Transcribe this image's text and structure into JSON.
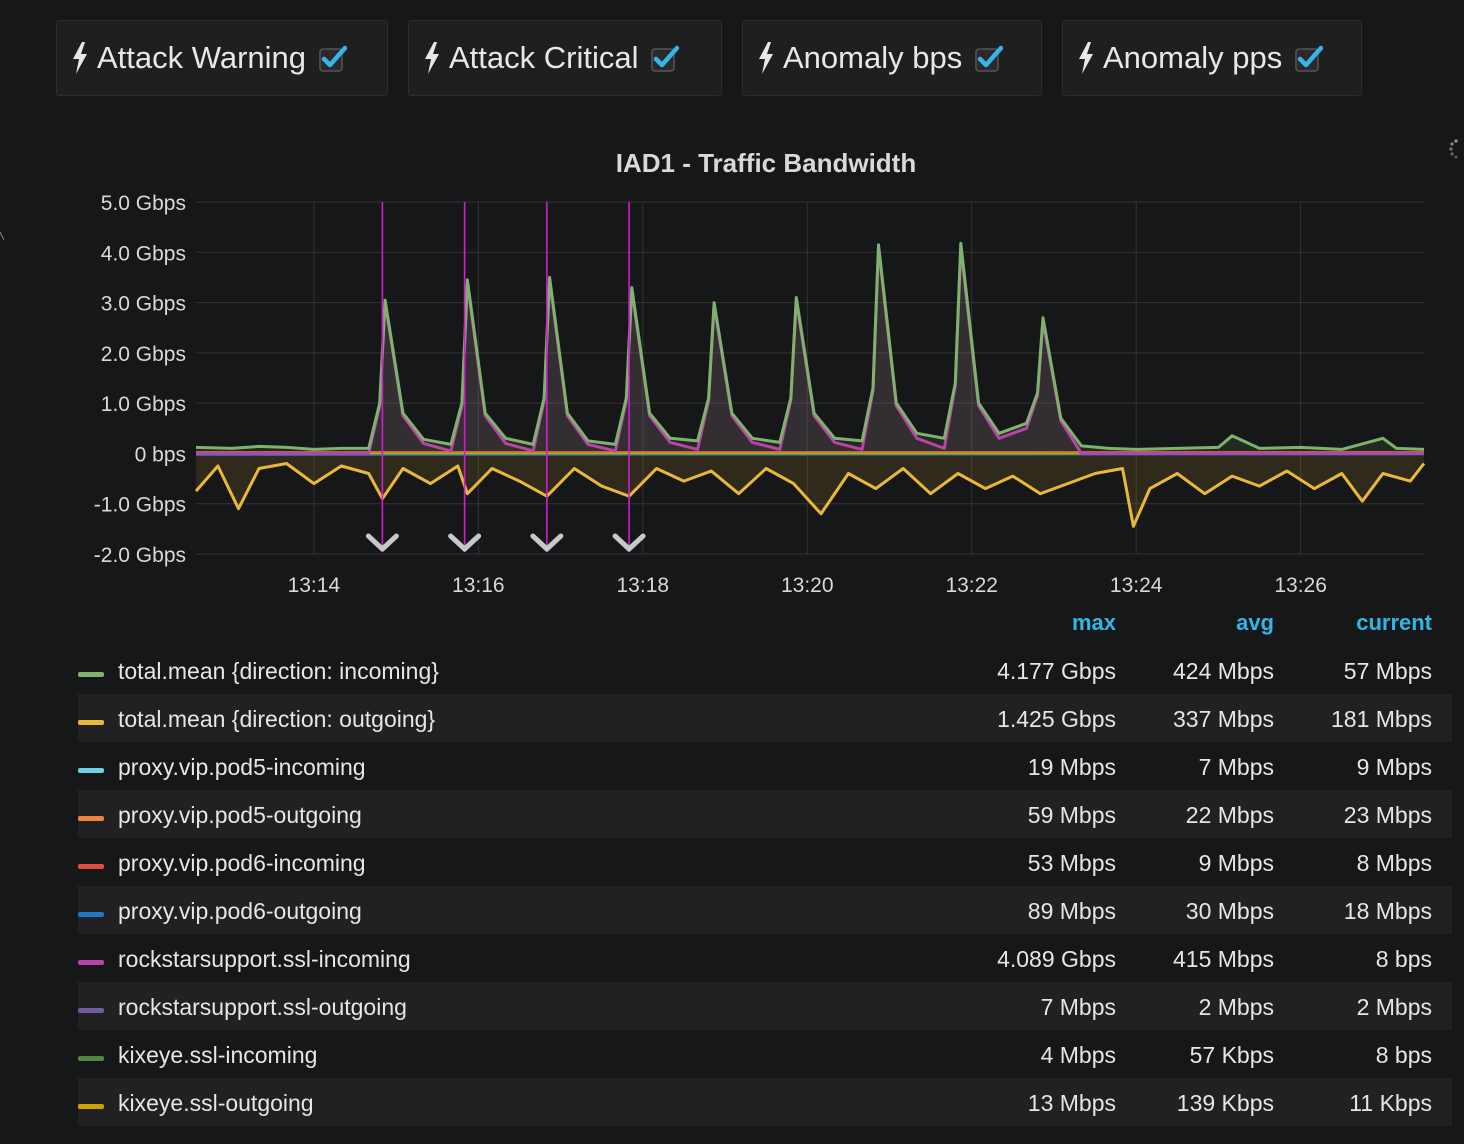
{
  "annotations_toggles": [
    {
      "label": "Attack Warning",
      "checked": true
    },
    {
      "label": "Attack Critical",
      "checked": true
    },
    {
      "label": "Anomaly bps",
      "checked": true
    },
    {
      "label": "Anomaly pps",
      "checked": true
    }
  ],
  "colors": {
    "background": "#161719",
    "annotation": "#d41bd4",
    "legend_header": "#33b5e5",
    "check": "#33b5e5"
  },
  "chart_data": {
    "type": "line",
    "title": "IAD1 - Traffic Bandwidth",
    "y_unit": "Gbps",
    "ylim": [
      -2.0,
      5.0
    ],
    "y_ticks": [
      {
        "value": 5,
        "label": "5.0 Gbps"
      },
      {
        "value": 4,
        "label": "4.0 Gbps"
      },
      {
        "value": 3,
        "label": "3.0 Gbps"
      },
      {
        "value": 2,
        "label": "2.0 Gbps"
      },
      {
        "value": 1,
        "label": "1.0 Gbps"
      },
      {
        "value": 0,
        "label": "0 bps"
      },
      {
        "value": -1,
        "label": "-1.0 Gbps"
      },
      {
        "value": -2,
        "label": "-2.0 Gbps"
      }
    ],
    "xlim": [
      "13:12:34",
      "13:27:30"
    ],
    "x_ticks": [
      {
        "value": "13:14",
        "label": "13:14"
      },
      {
        "value": "13:16",
        "label": "13:16"
      },
      {
        "value": "13:18",
        "label": "13:18"
      },
      {
        "value": "13:20",
        "label": "13:20"
      },
      {
        "value": "13:22",
        "label": "13:22"
      },
      {
        "value": "13:24",
        "label": "13:24"
      },
      {
        "value": "13:26",
        "label": "13:26"
      }
    ],
    "grid": true,
    "annotations": [
      "13:14:50",
      "13:15:50",
      "13:16:50",
      "13:17:50"
    ],
    "series": [
      {
        "name": "total.mean {direction: incoming}",
        "color": "#7eb26d",
        "x": [
          "13:12:34",
          "13:13:00",
          "13:13:20",
          "13:13:40",
          "13:14:00",
          "13:14:20",
          "13:14:40",
          "13:14:48",
          "13:14:52",
          "13:15:05",
          "13:15:20",
          "13:15:40",
          "13:15:48",
          "13:15:52",
          "13:16:05",
          "13:16:20",
          "13:16:40",
          "13:16:48",
          "13:16:52",
          "13:17:05",
          "13:17:20",
          "13:17:40",
          "13:17:48",
          "13:17:52",
          "13:18:05",
          "13:18:20",
          "13:18:40",
          "13:18:48",
          "13:18:52",
          "13:19:05",
          "13:19:20",
          "13:19:40",
          "13:19:48",
          "13:19:52",
          "13:20:05",
          "13:20:20",
          "13:20:40",
          "13:20:48",
          "13:20:52",
          "13:21:05",
          "13:21:20",
          "13:21:40",
          "13:21:48",
          "13:21:52",
          "13:22:05",
          "13:22:20",
          "13:22:40",
          "13:22:48",
          "13:22:52",
          "13:23:05",
          "13:23:20",
          "13:23:40",
          "13:24:00",
          "13:24:30",
          "13:25:00",
          "13:25:10",
          "13:25:30",
          "13:26:00",
          "13:26:30",
          "13:27:00",
          "13:27:10",
          "13:27:30"
        ],
        "values": [
          0.12,
          0.1,
          0.14,
          0.12,
          0.08,
          0.1,
          0.1,
          1.0,
          3.05,
          0.8,
          0.28,
          0.18,
          1.0,
          3.45,
          0.8,
          0.3,
          0.18,
          1.1,
          3.5,
          0.8,
          0.25,
          0.18,
          1.1,
          3.3,
          0.8,
          0.3,
          0.25,
          1.1,
          3.0,
          0.8,
          0.3,
          0.22,
          1.1,
          3.1,
          0.8,
          0.3,
          0.25,
          1.3,
          4.15,
          1.0,
          0.4,
          0.3,
          1.4,
          4.18,
          1.0,
          0.4,
          0.6,
          1.2,
          2.7,
          0.7,
          0.15,
          0.1,
          0.08,
          0.1,
          0.12,
          0.35,
          0.1,
          0.12,
          0.08,
          0.3,
          0.1,
          0.08
        ]
      },
      {
        "name": "total.mean {direction: outgoing}",
        "color": "#eab839",
        "x": [
          "13:12:34",
          "13:12:50",
          "13:13:05",
          "13:13:20",
          "13:13:40",
          "13:14:00",
          "13:14:20",
          "13:14:40",
          "13:14:50",
          "13:15:05",
          "13:15:25",
          "13:15:45",
          "13:15:52",
          "13:16:10",
          "13:16:30",
          "13:16:50",
          "13:17:10",
          "13:17:30",
          "13:17:50",
          "13:18:10",
          "13:18:30",
          "13:18:50",
          "13:19:10",
          "13:19:30",
          "13:19:50",
          "13:20:10",
          "13:20:30",
          "13:20:50",
          "13:21:10",
          "13:21:30",
          "13:21:50",
          "13:22:10",
          "13:22:30",
          "13:22:50",
          "13:23:10",
          "13:23:30",
          "13:23:50",
          "13:23:58",
          "13:24:10",
          "13:24:30",
          "13:24:50",
          "13:25:10",
          "13:25:30",
          "13:25:50",
          "13:26:10",
          "13:26:30",
          "13:26:45",
          "13:27:00",
          "13:27:20",
          "13:27:30"
        ],
        "values": [
          -0.75,
          -0.25,
          -1.1,
          -0.3,
          -0.2,
          -0.6,
          -0.25,
          -0.4,
          -0.9,
          -0.3,
          -0.6,
          -0.25,
          -0.8,
          -0.3,
          -0.55,
          -0.85,
          -0.3,
          -0.65,
          -0.85,
          -0.3,
          -0.55,
          -0.35,
          -0.8,
          -0.3,
          -0.6,
          -1.2,
          -0.4,
          -0.7,
          -0.3,
          -0.8,
          -0.4,
          -0.7,
          -0.45,
          -0.8,
          -0.6,
          -0.4,
          -0.3,
          -1.45,
          -0.7,
          -0.4,
          -0.8,
          -0.45,
          -0.65,
          -0.35,
          -0.7,
          -0.4,
          -0.95,
          -0.4,
          -0.55,
          -0.2
        ]
      },
      {
        "name": "proxy.vip.pod5-incoming",
        "color": "#6ed0e0",
        "x": [
          "13:12:34",
          "13:27:30"
        ],
        "values": [
          0.007,
          0.009
        ]
      },
      {
        "name": "proxy.vip.pod5-outgoing",
        "color": "#ef843c",
        "x": [
          "13:12:34",
          "13:27:30"
        ],
        "values": [
          0.022,
          0.023
        ]
      },
      {
        "name": "proxy.vip.pod6-incoming",
        "color": "#e24d42",
        "x": [
          "13:12:34",
          "13:27:30"
        ],
        "values": [
          0.009,
          0.008
        ]
      },
      {
        "name": "proxy.vip.pod6-outgoing",
        "color": "#1f78c1",
        "x": [
          "13:12:34",
          "13:27:30"
        ],
        "values": [
          -0.03,
          -0.018
        ]
      },
      {
        "name": "rockstarsupport.ssl-incoming",
        "color": "#ba43a9",
        "x": [
          "13:12:34",
          "13:14:40",
          "13:14:48",
          "13:14:52",
          "13:15:05",
          "13:15:20",
          "13:15:40",
          "13:15:48",
          "13:15:52",
          "13:16:05",
          "13:16:20",
          "13:16:40",
          "13:16:48",
          "13:16:52",
          "13:17:05",
          "13:17:20",
          "13:17:40",
          "13:17:48",
          "13:17:52",
          "13:18:05",
          "13:18:20",
          "13:18:40",
          "13:18:48",
          "13:18:52",
          "13:19:05",
          "13:19:20",
          "13:19:40",
          "13:19:48",
          "13:19:52",
          "13:20:05",
          "13:20:20",
          "13:20:40",
          "13:20:48",
          "13:20:52",
          "13:21:05",
          "13:21:20",
          "13:21:40",
          "13:21:48",
          "13:21:52",
          "13:22:05",
          "13:22:20",
          "13:22:40",
          "13:22:48",
          "13:22:52",
          "13:23:05",
          "13:23:20",
          "13:27:30"
        ],
        "values": [
          0.0,
          0.0,
          0.95,
          3.0,
          0.75,
          0.2,
          0.05,
          0.95,
          3.4,
          0.75,
          0.2,
          0.05,
          1.05,
          3.45,
          0.75,
          0.18,
          0.05,
          1.05,
          3.25,
          0.75,
          0.22,
          0.08,
          1.05,
          2.95,
          0.75,
          0.22,
          0.08,
          1.05,
          3.05,
          0.75,
          0.22,
          0.08,
          1.25,
          4.09,
          0.95,
          0.3,
          0.1,
          1.35,
          4.09,
          0.95,
          0.3,
          0.5,
          1.15,
          2.65,
          0.65,
          0.0,
          0.0
        ]
      },
      {
        "name": "rockstarsupport.ssl-outgoing",
        "color": "#705da0",
        "x": [
          "13:12:34",
          "13:27:30"
        ],
        "values": [
          0.002,
          0.002
        ]
      },
      {
        "name": "kixeye.ssl-incoming",
        "color": "#508642",
        "x": [
          "13:12:34",
          "13:27:30"
        ],
        "values": [
          0.0,
          0.0
        ]
      },
      {
        "name": "kixeye.ssl-outgoing",
        "color": "#cca300",
        "x": [
          "13:12:34",
          "13:27:30"
        ],
        "values": [
          0.0,
          0.0
        ]
      }
    ]
  },
  "legend": {
    "headers": {
      "max": "max",
      "avg": "avg",
      "current": "current"
    },
    "rows": [
      {
        "name": "total.mean {direction: incoming}",
        "color": "#7eb26d",
        "max": "4.177 Gbps",
        "avg": "424 Mbps",
        "current": "57 Mbps"
      },
      {
        "name": "total.mean {direction: outgoing}",
        "color": "#eab839",
        "max": "1.425 Gbps",
        "avg": "337 Mbps",
        "current": "181 Mbps"
      },
      {
        "name": "proxy.vip.pod5-incoming",
        "color": "#6ed0e0",
        "max": "19 Mbps",
        "avg": "7 Mbps",
        "current": "9 Mbps"
      },
      {
        "name": "proxy.vip.pod5-outgoing",
        "color": "#ef843c",
        "max": "59 Mbps",
        "avg": "22 Mbps",
        "current": "23 Mbps"
      },
      {
        "name": "proxy.vip.pod6-incoming",
        "color": "#e24d42",
        "max": "53 Mbps",
        "avg": "9 Mbps",
        "current": "8 Mbps"
      },
      {
        "name": "proxy.vip.pod6-outgoing",
        "color": "#1f78c1",
        "max": "89 Mbps",
        "avg": "30 Mbps",
        "current": "18 Mbps"
      },
      {
        "name": "rockstarsupport.ssl-incoming",
        "color": "#ba43a9",
        "max": "4.089 Gbps",
        "avg": "415 Mbps",
        "current": "8 bps"
      },
      {
        "name": "rockstarsupport.ssl-outgoing",
        "color": "#705da0",
        "max": "7 Mbps",
        "avg": "2 Mbps",
        "current": "2 Mbps"
      },
      {
        "name": "kixeye.ssl-incoming",
        "color": "#508642",
        "max": "4 Mbps",
        "avg": "57 Kbps",
        "current": "8 bps"
      },
      {
        "name": "kixeye.ssl-outgoing",
        "color": "#cca300",
        "max": "13 Mbps",
        "avg": "139 Kbps",
        "current": "11 Kbps"
      }
    ]
  }
}
